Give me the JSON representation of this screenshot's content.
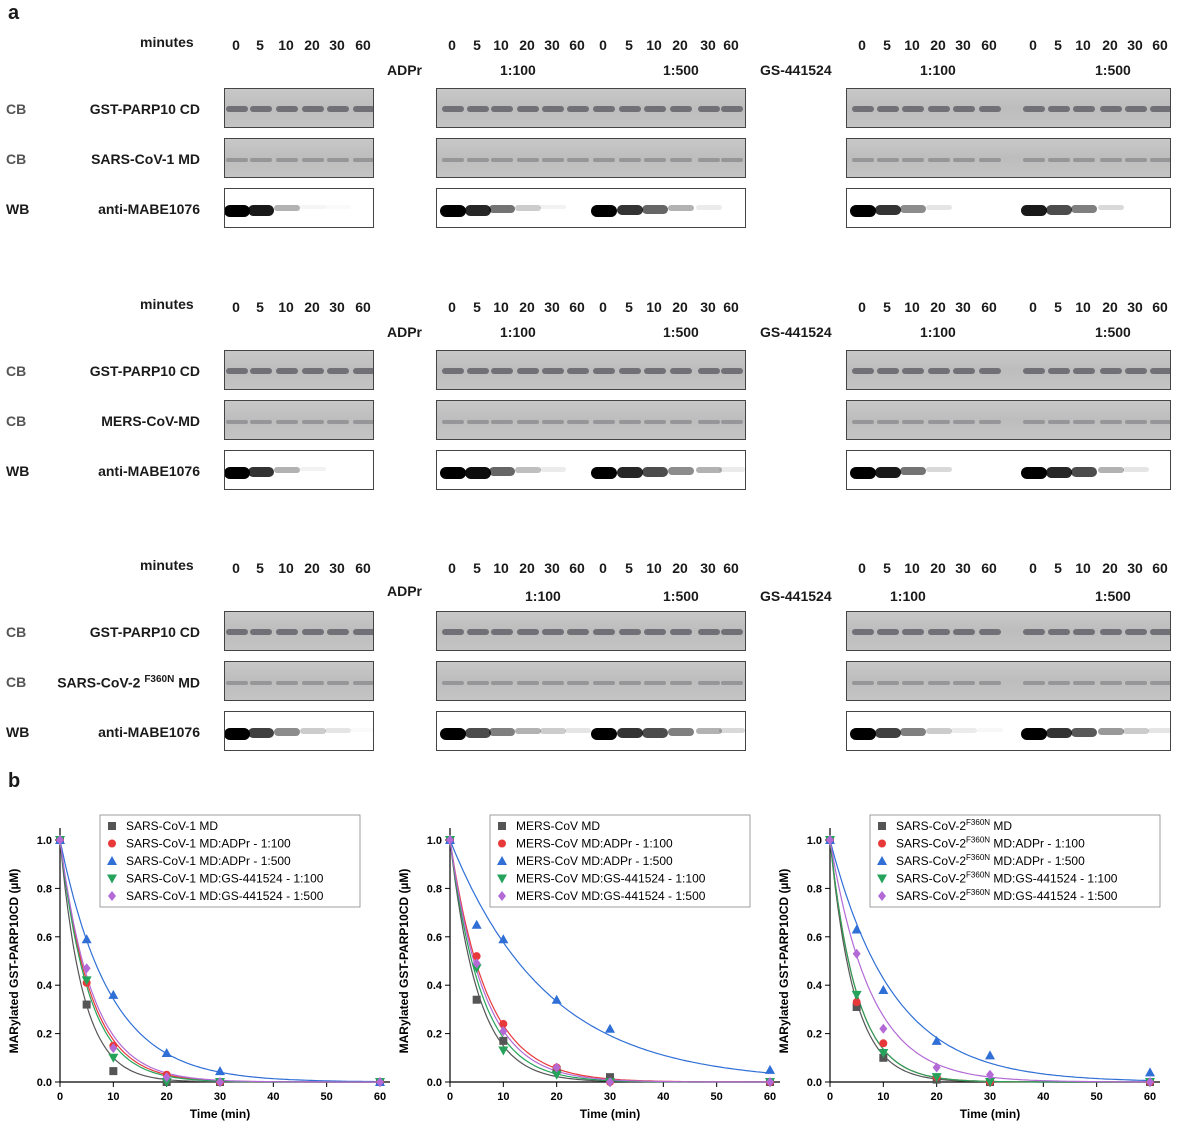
{
  "panel_a": {
    "letter": "a",
    "minutes_label": "minutes",
    "time_points": [
      "0",
      "5",
      "10",
      "20",
      "30",
      "60"
    ],
    "groups": [
      {
        "label": "ADPr",
        "ratios": [
          "1:100",
          "1:500"
        ]
      },
      {
        "label": "GS-441524",
        "ratios": [
          "1:100",
          "1:500"
        ]
      }
    ],
    "rows": [
      {
        "cb1_type": "CB",
        "cb1_label": "GST-PARP10 CD",
        "cb2_type": "CB",
        "cb2_label": "SARS-CoV-1 MD",
        "wb_type": "WB",
        "wb_label": "anti-MABE1076"
      },
      {
        "cb1_type": "CB",
        "cb1_label": "GST-PARP10 CD",
        "cb2_type": "CB",
        "cb2_label": "MERS-CoV-MD",
        "wb_type": "WB",
        "wb_label": "anti-MABE1076"
      },
      {
        "cb1_type": "CB",
        "cb1_label": "GST-PARP10 CD",
        "cb2_type": "CB",
        "cb2_label_main": "SARS-CoV-2",
        "cb2_label_sup": "F360N",
        "cb2_label_end": "MD",
        "wb_type": "WB",
        "wb_label": "anti-MABE1076"
      }
    ]
  },
  "panel_b": {
    "letter": "b",
    "chart_data": [
      {
        "type": "scatter",
        "xlabel": "Time (min)",
        "ylabel": "MARylated GST-PARP10CD (µM)",
        "xlim": [
          0,
          60
        ],
        "ylim": [
          0,
          1.0
        ],
        "xticks": [
          0,
          10,
          20,
          30,
          40,
          50,
          60
        ],
        "yticks": [
          0.0,
          0.2,
          0.4,
          0.6,
          0.8,
          1.0
        ],
        "legend_position": "top-right",
        "x": [
          0,
          5,
          10,
          20,
          30,
          60
        ],
        "series": [
          {
            "name": "SARS-CoV-1 MD",
            "color": "#555555",
            "marker": "square",
            "values": [
              1.0,
              0.32,
              0.045,
              0.0,
              0.0,
              0.0
            ],
            "k": 0.23
          },
          {
            "name": "SARS-CoV-1 MD:ADPr - 1:100",
            "color": "#e8393a",
            "marker": "circle",
            "values": [
              1.0,
              0.41,
              0.15,
              0.03,
              0.0,
              0.0
            ],
            "k": 0.175
          },
          {
            "name": "SARS-CoV-1 MD:ADPr - 1:500",
            "color": "#2f6fd6",
            "marker": "triangle-up",
            "values": [
              1.0,
              0.59,
              0.36,
              0.12,
              0.045,
              0.0
            ],
            "k": 0.107
          },
          {
            "name": "SARS-CoV-1 MD:GS-441524 - 1:100",
            "color": "#25a35a",
            "marker": "triangle-down",
            "values": [
              1.0,
              0.42,
              0.1,
              0.0,
              0.0,
              0.0
            ],
            "k": 0.185
          },
          {
            "name": "SARS-CoV-1 MD:GS-441524 - 1:500",
            "color": "#b36ad6",
            "marker": "diamond",
            "values": [
              1.0,
              0.47,
              0.14,
              0.02,
              0.0,
              0.0
            ],
            "k": 0.165
          }
        ]
      },
      {
        "type": "scatter",
        "xlabel": "Time (min)",
        "ylabel": "MARylated GST-PARP10CD (µM)",
        "xlim": [
          0,
          60
        ],
        "ylim": [
          0,
          1.0
        ],
        "xticks": [
          0,
          10,
          20,
          30,
          40,
          50,
          60
        ],
        "yticks": [
          0.0,
          0.2,
          0.4,
          0.6,
          0.8,
          1.0
        ],
        "legend_position": "top-right",
        "x": [
          0,
          5,
          10,
          20,
          30,
          60
        ],
        "series": [
          {
            "name": "MERS-CoV MD",
            "color": "#555555",
            "marker": "square",
            "values": [
              1.0,
              0.34,
              0.17,
              0.05,
              0.02,
              0.0
            ],
            "k": 0.19
          },
          {
            "name": "MERS-CoV MD:ADPr - 1:100",
            "color": "#e8393a",
            "marker": "circle",
            "values": [
              1.0,
              0.52,
              0.24,
              0.06,
              0.0,
              0.0
            ],
            "k": 0.145
          },
          {
            "name": "MERS-CoV MD:ADPr - 1:500",
            "color": "#2f6fd6",
            "marker": "triangle-up",
            "values": [
              1.0,
              0.65,
              0.59,
              0.34,
              0.22,
              0.05
            ],
            "k": 0.055
          },
          {
            "name": "MERS-CoV MD:GS-441524 - 1:100",
            "color": "#25a35a",
            "marker": "triangle-down",
            "values": [
              1.0,
              0.47,
              0.13,
              0.03,
              0.0,
              0.0
            ],
            "k": 0.17
          },
          {
            "name": "MERS-CoV MD:GS-441524 - 1:500",
            "color": "#b36ad6",
            "marker": "diamond",
            "values": [
              1.0,
              0.49,
              0.21,
              0.06,
              0.0,
              0.0
            ],
            "k": 0.155
          }
        ]
      },
      {
        "type": "scatter",
        "xlabel": "Time (min)",
        "ylabel": "MARylated GST-PARP10CD (µM)",
        "xlim": [
          0,
          60
        ],
        "ylim": [
          0,
          1.0
        ],
        "xticks": [
          0,
          10,
          20,
          30,
          40,
          50,
          60
        ],
        "yticks": [
          0.0,
          0.2,
          0.4,
          0.6,
          0.8,
          1.0
        ],
        "legend_position": "top-right",
        "x": [
          0,
          5,
          10,
          20,
          30,
          60
        ],
        "series": [
          {
            "name": "SARS-CoV-2 MD",
            "name_sup": "F360N",
            "name_prefix": "SARS-CoV-2",
            "name_suffix": " MD",
            "color": "#555555",
            "marker": "square",
            "values": [
              1.0,
              0.31,
              0.1,
              0.01,
              0.0,
              0.0
            ],
            "k": 0.22
          },
          {
            "name": "SARS-CoV-2 MD:ADPr - 1:100",
            "name_sup": "F360N",
            "name_prefix": "SARS-CoV-2",
            "name_suffix": " MD:ADPr - 1:100",
            "color": "#e8393a",
            "marker": "circle",
            "values": [
              1.0,
              0.33,
              0.16,
              0.02,
              0.0,
              0.0
            ],
            "k": 0.2
          },
          {
            "name": "SARS-CoV-2 MD:ADPr - 1:500",
            "name_sup": "F360N",
            "name_prefix": "SARS-CoV-2",
            "name_suffix": " MD:ADPr - 1:500",
            "color": "#2f6fd6",
            "marker": "triangle-up",
            "values": [
              1.0,
              0.63,
              0.38,
              0.17,
              0.11,
              0.04
            ],
            "k": 0.085
          },
          {
            "name": "SARS-CoV-2 MD:GS-441524 - 1:100",
            "name_sup": "F360N",
            "name_prefix": "SARS-CoV-2",
            "name_suffix": " MD:GS-441524 - 1:100",
            "color": "#25a35a",
            "marker": "triangle-down",
            "values": [
              1.0,
              0.36,
              0.12,
              0.02,
              0.0,
              0.0
            ],
            "k": 0.2
          },
          {
            "name": "SARS-CoV-2 MD:GS-441524 - 1:500",
            "name_sup": "F360N",
            "name_prefix": "SARS-CoV-2",
            "name_suffix": " MD:GS-441524 - 1:500",
            "color": "#b36ad6",
            "marker": "diamond",
            "values": [
              1.0,
              0.53,
              0.22,
              0.06,
              0.03,
              0.0
            ],
            "k": 0.13
          }
        ]
      }
    ]
  }
}
